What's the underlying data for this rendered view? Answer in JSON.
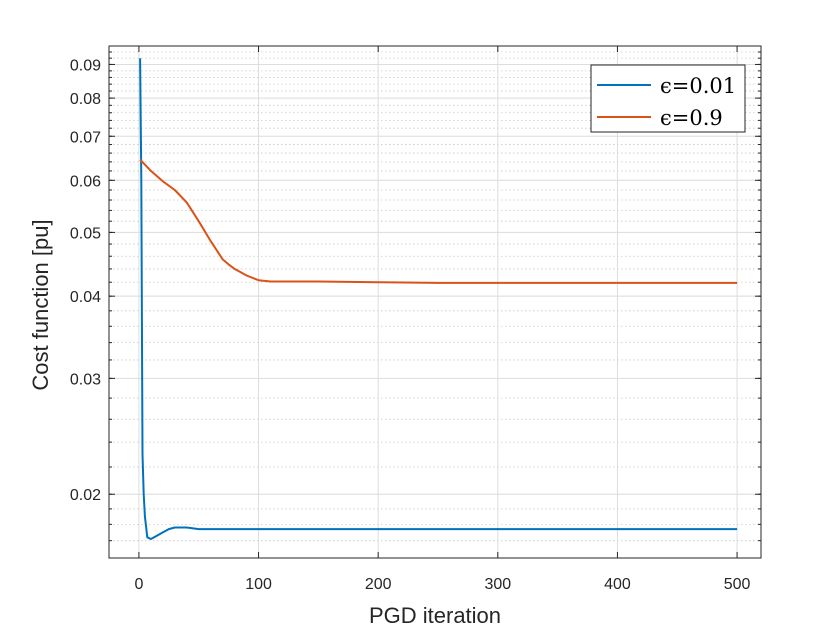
{
  "chart_data": {
    "type": "line",
    "title": "",
    "xlabel": "PGD iteration",
    "ylabel": "Cost function [pu]",
    "xlim": [
      -25,
      520
    ],
    "ylim": [
      0.016,
      0.096
    ],
    "yscale": "log",
    "grid": true,
    "minor_grid": true,
    "legend_position": "top-right",
    "x_ticks": [
      0,
      100,
      200,
      300,
      400,
      500
    ],
    "x_tick_labels": [
      "0",
      "100",
      "200",
      "300",
      "400",
      "500"
    ],
    "y_ticks": [
      0.02,
      0.03,
      0.04,
      0.05,
      0.06,
      0.07,
      0.08,
      0.09
    ],
    "y_tick_labels": [
      "0.02",
      "0.03",
      "0.04",
      "0.05",
      "0.06",
      "0.07",
      "0.08",
      "0.09"
    ],
    "series": [
      {
        "name": "ϵ=0.01",
        "color": "#0072BD",
        "x": [
          1,
          2,
          3,
          4,
          5,
          7,
          10,
          15,
          20,
          25,
          30,
          40,
          50,
          60,
          100,
          200,
          300,
          400,
          500
        ],
        "y": [
          0.092,
          0.06,
          0.023,
          0.02,
          0.0185,
          0.0172,
          0.0171,
          0.0173,
          0.0175,
          0.0177,
          0.0178,
          0.0178,
          0.0177,
          0.0177,
          0.0177,
          0.0177,
          0.0177,
          0.0177,
          0.0177
        ]
      },
      {
        "name": "ϵ=0.9",
        "color": "#D95319",
        "x": [
          1,
          10,
          20,
          30,
          40,
          50,
          60,
          70,
          75,
          80,
          90,
          100,
          110,
          150,
          200,
          250,
          300,
          400,
          500
        ],
        "y": [
          0.0645,
          0.062,
          0.0598,
          0.058,
          0.0555,
          0.052,
          0.0485,
          0.0455,
          0.0447,
          0.044,
          0.043,
          0.0423,
          0.0421,
          0.0421,
          0.042,
          0.0419,
          0.0419,
          0.0419,
          0.0419
        ]
      }
    ]
  }
}
